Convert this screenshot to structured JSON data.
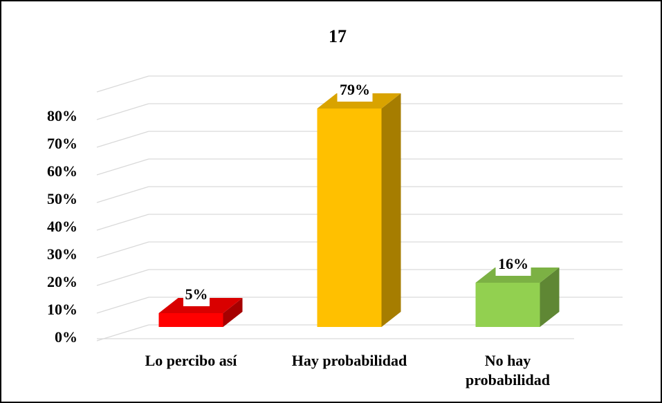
{
  "chart_data": {
    "type": "bar3d",
    "title": "17",
    "categories": [
      "Lo percibo así",
      "Hay probabilidad",
      "No hay probabilidad"
    ],
    "values": [
      5,
      79,
      16
    ],
    "value_labels": [
      "5%",
      "79%",
      "16%"
    ],
    "colors": [
      "#ff0000",
      "#ffc000",
      "#92d050"
    ],
    "ylim": [
      0,
      90
    ],
    "yticks": [
      {
        "value": 0,
        "label": "0%"
      },
      {
        "value": 10,
        "label": "10%"
      },
      {
        "value": 20,
        "label": "20%"
      },
      {
        "value": 30,
        "label": "30%"
      },
      {
        "value": 40,
        "label": "40%"
      },
      {
        "value": 50,
        "label": "50%"
      },
      {
        "value": 60,
        "label": "60%"
      },
      {
        "value": 70,
        "label": "70%"
      },
      {
        "value": 80,
        "label": "80%"
      }
    ],
    "grid": true
  }
}
